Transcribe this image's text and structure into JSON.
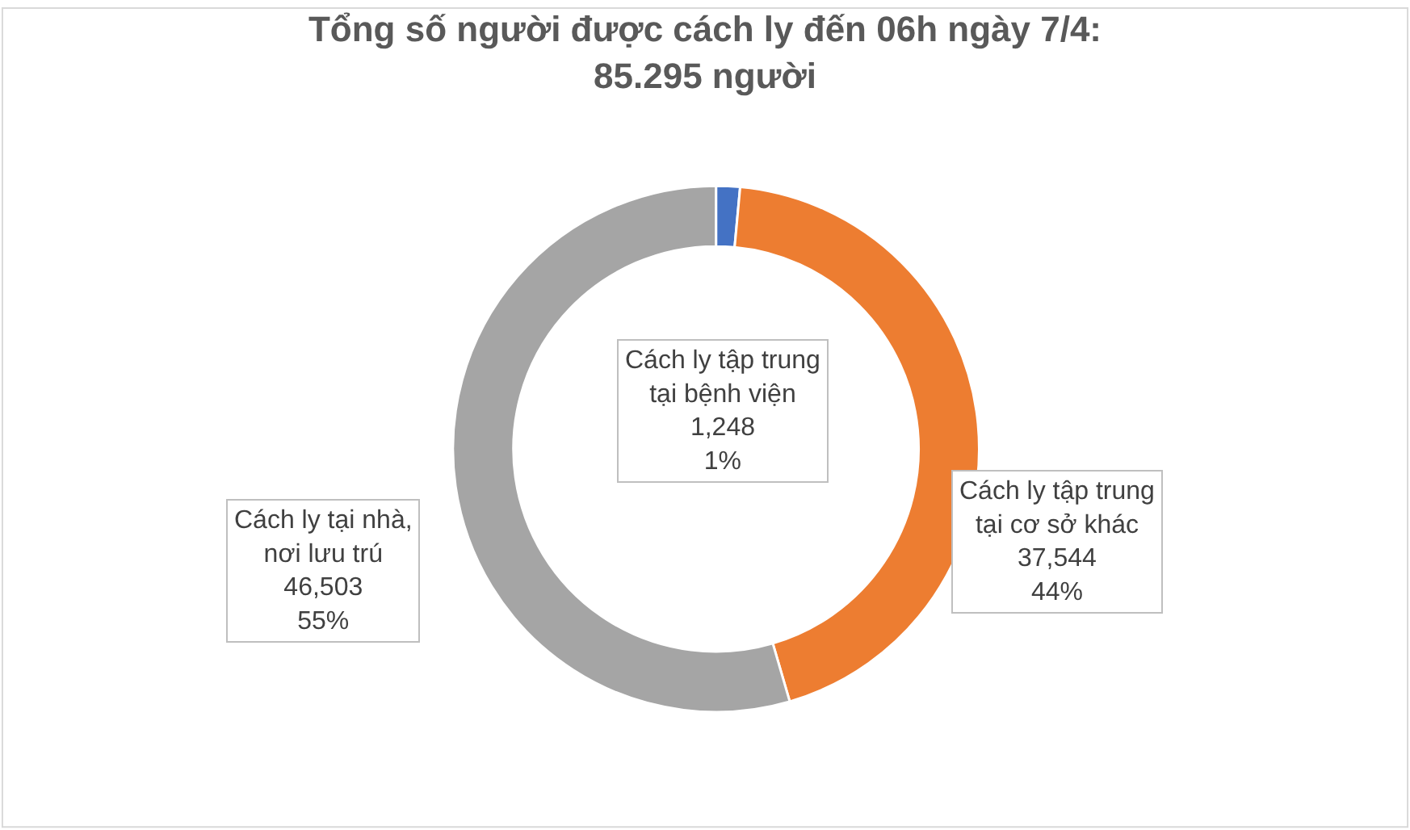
{
  "chart_data": {
    "type": "donut",
    "title": "Tổng số người được cách ly đến 06h ngày 7/4:\n85.295 người",
    "categories": [
      "Cách ly tập trung\ntại bệnh viện",
      "Cách ly tập trung\ntại cơ sở khác",
      "Cách ly tại nhà,\nnơi lưu trú"
    ],
    "values": [
      1248,
      37544,
      46503
    ],
    "value_labels": [
      "1,248\n1%",
      "37,544\n44%",
      "46,503\n55%"
    ],
    "colors": [
      "#4472c4",
      "#ed7d31",
      "#a5a5a5"
    ],
    "legend": false
  }
}
